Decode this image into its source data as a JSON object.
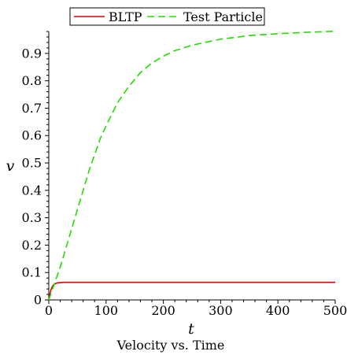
{
  "chart_data": {
    "type": "line",
    "title": "",
    "caption": "Velocity vs. Time",
    "xlabel": "t",
    "ylabel": "v",
    "xlim": [
      0,
      500
    ],
    "ylim": [
      0,
      0.98
    ],
    "xticks": [
      "0",
      "100",
      "200",
      "300",
      "400",
      "500"
    ],
    "yticks": [
      "0",
      "0.1",
      "0.2",
      "0.3",
      "0.4",
      "0.5",
      "0.6",
      "0.7",
      "0.8",
      "0.9"
    ],
    "grid": false,
    "legend_position": "top-center",
    "series": [
      {
        "name": "BLTP",
        "color": "#e00000",
        "dash": "solid",
        "x": [
          0,
          2,
          4,
          6,
          8,
          10,
          15,
          20,
          25,
          30,
          40,
          50,
          100,
          200,
          300,
          400,
          500
        ],
        "y": [
          0,
          0.022,
          0.038,
          0.048,
          0.054,
          0.058,
          0.062,
          0.063,
          0.064,
          0.064,
          0.064,
          0.064,
          0.064,
          0.064,
          0.064,
          0.064,
          0.064
        ]
      },
      {
        "name": "Test Particle",
        "color": "#22dd00",
        "dash": "dashed",
        "x": [
          0,
          10,
          20,
          30,
          40,
          50,
          60,
          70,
          80,
          90,
          100,
          120,
          140,
          160,
          180,
          200,
          220,
          250,
          300,
          350,
          400,
          450,
          500
        ],
        "y": [
          0,
          0.06,
          0.12,
          0.19,
          0.26,
          0.33,
          0.4,
          0.47,
          0.53,
          0.59,
          0.635,
          0.72,
          0.78,
          0.83,
          0.865,
          0.89,
          0.91,
          0.93,
          0.952,
          0.965,
          0.972,
          0.977,
          0.981
        ]
      }
    ]
  }
}
